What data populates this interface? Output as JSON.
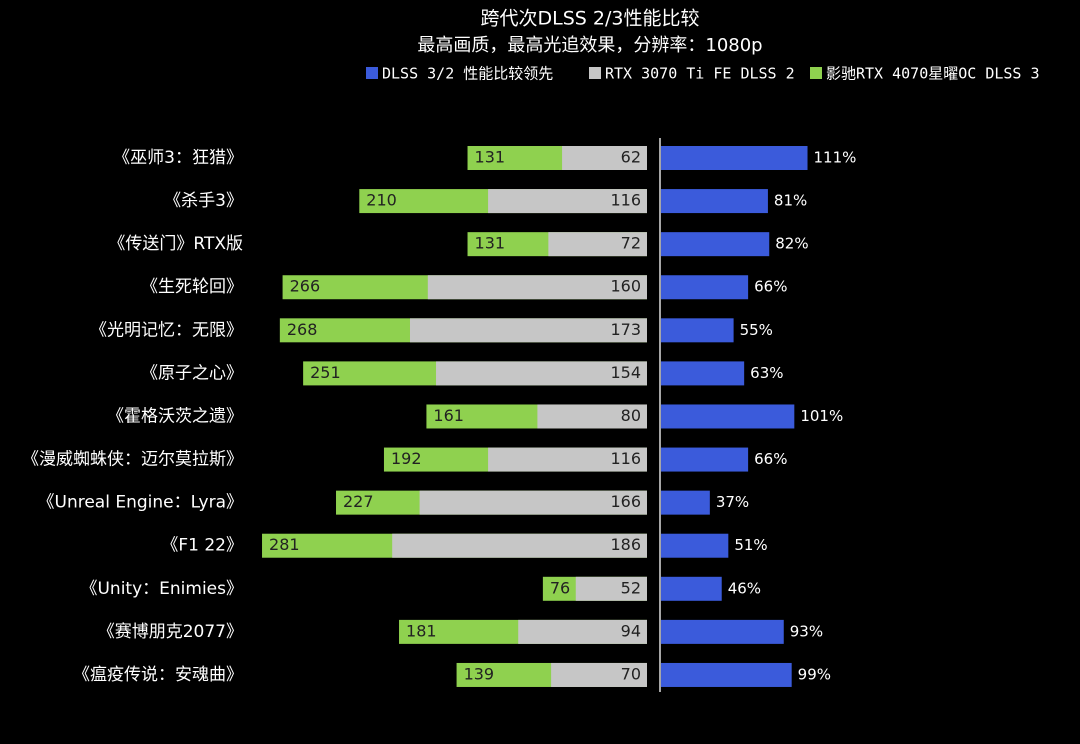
{
  "chart_data": {
    "type": "bar",
    "title": "跨代次DLSS 2/3性能比较",
    "subtitle": "最高画质，最高光追效果，分辨率：1080p",
    "categories": [
      "《巫师3：狂猎》",
      "《杀手3》",
      "《传送门》RTX版",
      "《生死轮回》",
      "《光明记忆：无限》",
      "《原子之心》",
      "《霍格沃茨之遗》",
      "《漫威蜘蛛侠：迈尔莫拉斯》",
      "《Unreal Engine：Lyra》",
      "《F1 22》",
      "《Unity：Enimies》",
      "《赛博朋克2077》",
      "《瘟疫传说：安魂曲》"
    ],
    "series": [
      {
        "name": "DLSS 3/2 性能比较领先",
        "color": "#3b5bdb",
        "values": [
          111,
          81,
          82,
          66,
          55,
          63,
          101,
          66,
          37,
          51,
          46,
          93,
          99
        ],
        "value_labels": [
          "111%",
          "81%",
          "82%",
          "66%",
          "55%",
          "63%",
          "101%",
          "66%",
          "37%",
          "51%",
          "46%",
          "93%",
          "99%"
        ]
      },
      {
        "name": "RTX 3070 Ti FE DLSS 2",
        "color": "#c6c6c6",
        "values": [
          62,
          116,
          72,
          160,
          173,
          154,
          80,
          116,
          166,
          186,
          52,
          94,
          70
        ]
      },
      {
        "name": "影驰RTX 4070星曜OC DLSS 3",
        "color": "#8fd14f",
        "values": [
          131,
          210,
          131,
          266,
          268,
          251,
          161,
          192,
          227,
          281,
          76,
          181,
          139
        ]
      }
    ]
  }
}
